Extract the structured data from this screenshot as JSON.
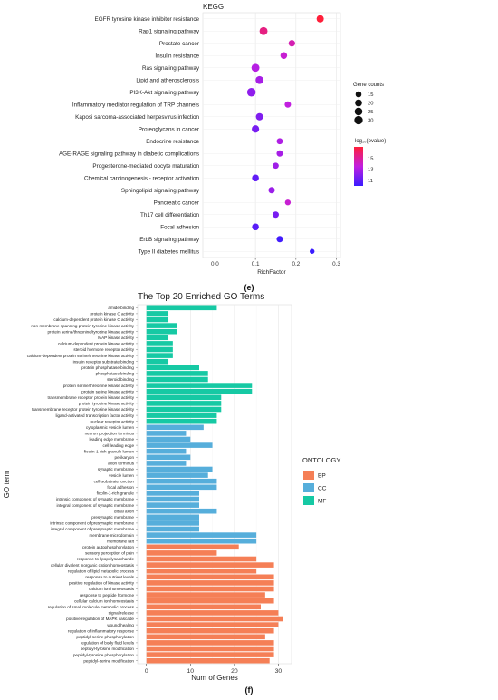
{
  "panels": {
    "e_label": "(e)",
    "f_label": "(f)"
  },
  "chart_data": [
    {
      "type": "scatter",
      "title": "KEGG",
      "xlabel": "RichFactor",
      "ylabel": "",
      "xlim": [
        -0.03,
        0.31
      ],
      "xticks": [
        0.0,
        0.1,
        0.2,
        0.3
      ],
      "xtick_labels": [
        "0.0",
        "0.1",
        "0.2",
        "0.3"
      ],
      "grid": true,
      "categories": [
        "EGFR tyrosine kinase inhibitor resistance",
        "Rap1 signaling pathway",
        "Prostate cancer",
        "Insulin resistance",
        "Ras signaling pathway",
        "Lipid and atherosclerosis",
        "PI3K-Akt signaling pathway",
        "Inflammatory mediator regulation of TRP channels",
        "Kaposi sarcoma-associated herpesvirus infection",
        "Proteoglycans in cancer",
        "Endocrine resistance",
        "AGE-RAGE signaling pathway in diabetic complications",
        "Progesterone-mediated oocyte maturation",
        "Chemical carcinogenesis - receptor activation",
        "Sphingolipid signaling pathway",
        "Pancreatic cancer",
        "Th17 cell differentiation",
        "Focal adhesion",
        "ErbB signaling pathway",
        "Type II diabetes mellitus"
      ],
      "richfactor": [
        0.26,
        0.12,
        0.19,
        0.17,
        0.1,
        0.11,
        0.09,
        0.18,
        0.11,
        0.1,
        0.16,
        0.16,
        0.15,
        0.1,
        0.14,
        0.18,
        0.15,
        0.1,
        0.16,
        0.24
      ],
      "gene_counts": [
        22,
        27,
        18,
        19,
        27,
        26,
        31,
        17,
        22,
        23,
        16,
        17,
        16,
        20,
        17,
        14,
        17,
        20,
        17,
        10
      ],
      "neg_log10_pvalue": [
        17.0,
        15.5,
        14.5,
        13.8,
        13.2,
        12.8,
        12.2,
        13.5,
        11.8,
        11.6,
        13.0,
        12.8,
        12.6,
        11.0,
        12.5,
        13.8,
        11.6,
        10.8,
        10.2,
        10.0
      ],
      "size_legend": {
        "title": "Gene counts",
        "values": [
          15,
          20,
          25,
          30
        ],
        "labels": [
          "15",
          "20",
          "25",
          "30"
        ]
      },
      "color_legend": {
        "title": "-log₁₀(pvalue)",
        "min": 10.0,
        "max": 17.0,
        "ticks": [
          11,
          13,
          15
        ],
        "tick_labels": [
          "11",
          "13",
          "15"
        ],
        "low_color": "#3a1cff",
        "mid_color": "#c21fe0",
        "high_color": "#ff1f3a"
      },
      "legend_position": "right"
    },
    {
      "type": "bar",
      "orientation": "horizontal",
      "title": "The Top 20 Enriched GO Terms",
      "xlabel": "Num of Genes",
      "ylabel": "GO term",
      "xlim": [
        -2,
        33
      ],
      "xticks": [
        0,
        10,
        20,
        30
      ],
      "xtick_labels": [
        "0",
        "10",
        "20",
        "30"
      ],
      "grid": true,
      "legend_title": "ONTOLOGY",
      "legend_position": "right",
      "ontology_colors": {
        "BP": "#f57f56",
        "CC": "#56aedb",
        "MF": "#16c9a4"
      },
      "legend_items": [
        "BP",
        "CC",
        "MF"
      ],
      "terms": [
        "amide binding",
        "protein kinase C activity",
        "calcium-dependent protein kinase C activity",
        "non-membrane spanning protein tyrosine kinase activity",
        "protein serine/threonine/tyrosine kinase activity",
        "MAP kinase activity",
        "calcium-dependent protein kinase activity",
        "steroid hormone receptor activity",
        "calcium-dependent protein serine/threonine kinase activity",
        "insulin receptor substrate binding",
        "protein phosphatase binding",
        "phosphatase binding",
        "steroid binding",
        "protein serine/threonine kinase activity",
        "protein serine kinase activity",
        "transmembrane receptor protein kinase activity",
        "protein tyrosine kinase activity",
        "transmembrane receptor protein tyrosine kinase activity",
        "ligand-activated transcription factor activity",
        "nuclear receptor activity",
        "cytoplasmic vesicle lumen",
        "neuron projection terminus",
        "leading edge membrane",
        "cell leading edge",
        "ficolin-1-rich granule lumen",
        "perikaryon",
        "axon terminus",
        "synaptic membrane",
        "vesicle lumen",
        "cell-substrate junction",
        "focal adhesion",
        "ficolin-1-rich granule",
        "intrinsic component of synaptic membrane",
        "integral component of synaptic membrane",
        "distal axon",
        "presynaptic membrane",
        "intrinsic component of presynaptic membrane",
        "integral component of presynaptic membrane",
        "membrane microdomain",
        "membrane raft",
        "protein autophosphorylation",
        "sensory perception of pain",
        "response to lipopolysaccharide",
        "cellular divalent inorganic cation homeostasis",
        "regulation of lipid metabolic process",
        "response to nutrient levels",
        "positive regulation of kinase activity",
        "calcium ion homeostasis",
        "response to peptide hormone",
        "cellular calcium ion homeostasis",
        "regulation of small molecule metabolic process",
        "signal release",
        "positive regulation of MAPK cascade",
        "wound healing",
        "regulation of inflammatory response",
        "peptidyl-serine phosphorylation",
        "regulation of body fluid levels",
        "peptidyl-tyrosine modification",
        "peptidyl-tyrosine phosphorylation",
        "peptidyl-serine modification"
      ],
      "values": [
        16,
        5,
        5,
        7,
        7,
        5,
        6,
        6,
        6,
        5,
        12,
        14,
        14,
        24,
        24,
        17,
        17,
        17,
        16,
        16,
        13,
        9,
        10,
        15,
        9,
        10,
        9,
        15,
        14,
        16,
        16,
        12,
        12,
        12,
        16,
        12,
        12,
        12,
        25,
        25,
        21,
        16,
        25,
        29,
        25,
        29,
        29,
        29,
        27,
        29,
        26,
        30,
        31,
        30,
        29,
        27,
        29,
        29,
        29,
        28
      ],
      "ontology": [
        "MF",
        "MF",
        "MF",
        "MF",
        "MF",
        "MF",
        "MF",
        "MF",
        "MF",
        "MF",
        "MF",
        "MF",
        "MF",
        "MF",
        "MF",
        "MF",
        "MF",
        "MF",
        "MF",
        "MF",
        "CC",
        "CC",
        "CC",
        "CC",
        "CC",
        "CC",
        "CC",
        "CC",
        "CC",
        "CC",
        "CC",
        "CC",
        "CC",
        "CC",
        "CC",
        "CC",
        "CC",
        "CC",
        "CC",
        "CC",
        "BP",
        "BP",
        "BP",
        "BP",
        "BP",
        "BP",
        "BP",
        "BP",
        "BP",
        "BP",
        "BP",
        "BP",
        "BP",
        "BP",
        "BP",
        "BP",
        "BP",
        "BP",
        "BP",
        "BP"
      ]
    }
  ]
}
